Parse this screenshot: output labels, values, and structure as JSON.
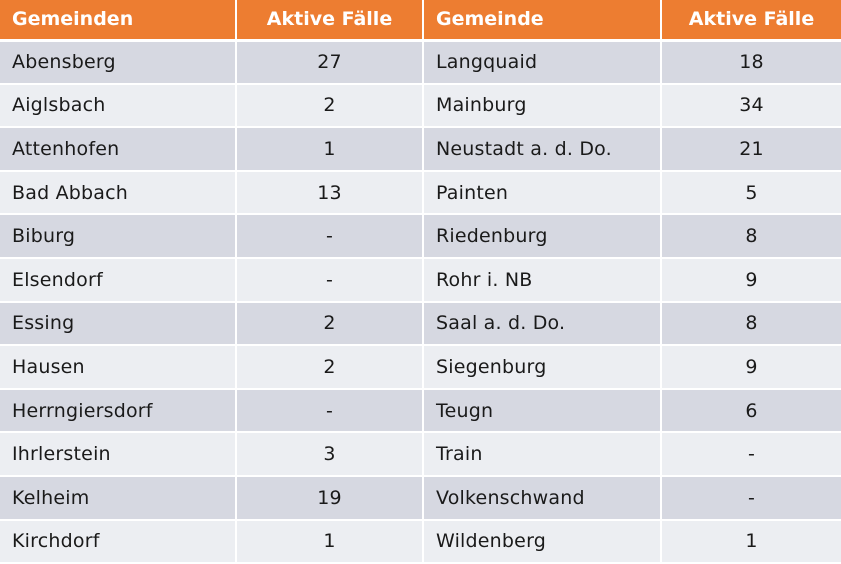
{
  "table": {
    "headers": [
      "Gemeinden",
      "Aktive Fälle",
      "Gemeinde",
      "Aktive Fälle"
    ],
    "rows": [
      {
        "left_name": "Abensberg",
        "left_value": "27",
        "right_name": "Langquaid",
        "right_value": "18"
      },
      {
        "left_name": "Aiglsbach",
        "left_value": "2",
        "right_name": "Mainburg",
        "right_value": "34"
      },
      {
        "left_name": "Attenhofen",
        "left_value": "1",
        "right_name": "Neustadt a. d. Do.",
        "right_value": "21"
      },
      {
        "left_name": "Bad Abbach",
        "left_value": "13",
        "right_name": "Painten",
        "right_value": "5"
      },
      {
        "left_name": "Biburg",
        "left_value": "-",
        "right_name": "Riedenburg",
        "right_value": "8"
      },
      {
        "left_name": "Elsendorf",
        "left_value": "-",
        "right_name": "Rohr i. NB",
        "right_value": "9"
      },
      {
        "left_name": "Essing",
        "left_value": "2",
        "right_name": "Saal a. d. Do.",
        "right_value": "8"
      },
      {
        "left_name": "Hausen",
        "left_value": "2",
        "right_name": "Siegenburg",
        "right_value": "9"
      },
      {
        "left_name": "Herrngiersdorf",
        "left_value": "-",
        "right_name": "Teugn",
        "right_value": "6"
      },
      {
        "left_name": "Ihrlerstein",
        "left_value": "3",
        "right_name": "Train",
        "right_value": "-"
      },
      {
        "left_name": "Kelheim",
        "left_value": "19",
        "right_name": "Volkenschwand",
        "right_value": "-"
      },
      {
        "left_name": "Kirchdorf",
        "left_value": "1",
        "right_name": "Wildenberg",
        "right_value": "1"
      }
    ]
  },
  "colors": {
    "header_bg": "#ed7d31",
    "row_odd": "#d6d8e1",
    "row_even": "#eceef2"
  }
}
